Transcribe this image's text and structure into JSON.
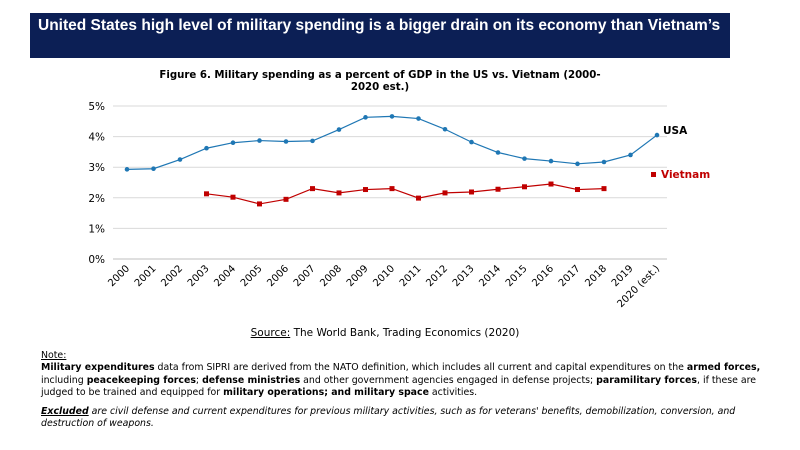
{
  "banner": {
    "title": "United States high level of military spending is a bigger drain on its economy than Vietnam’s"
  },
  "chart_data": {
    "type": "line",
    "title": "Figure 6. Military spending as a percent of GDP in the US vs. Vietnam (2000-2020 est.)",
    "categories": [
      "2000",
      "2001",
      "2002",
      "2003",
      "2004",
      "2005",
      "2006",
      "2007",
      "2008",
      "2009",
      "2010",
      "2011",
      "2012",
      "2013",
      "2014",
      "2015",
      "2016",
      "2017",
      "2018",
      "2019",
      "2020 (est.)"
    ],
    "ylim": [
      0,
      5
    ],
    "yticks": [
      "0%",
      "1%",
      "2%",
      "3%",
      "4%",
      "5%"
    ],
    "grid": true,
    "series": [
      {
        "name": "USA",
        "color": "#1f77b4",
        "marker": "circle",
        "values": [
          2.93,
          2.95,
          3.25,
          3.62,
          3.8,
          3.87,
          3.84,
          3.86,
          4.23,
          4.63,
          4.66,
          4.59,
          4.24,
          3.82,
          3.48,
          3.28,
          3.2,
          3.11,
          3.17,
          3.4,
          4.05
        ]
      },
      {
        "name": "Vietnam",
        "color": "#c00000",
        "marker": "square",
        "values": [
          null,
          null,
          null,
          2.13,
          2.02,
          1.8,
          1.95,
          2.3,
          2.16,
          2.27,
          2.3,
          1.99,
          2.16,
          2.19,
          2.28,
          2.36,
          2.45,
          2.27,
          2.3,
          null,
          null
        ]
      }
    ]
  },
  "source": {
    "label": "Source:",
    "text": " The World Bank, Trading Economics (2020)"
  },
  "notes": {
    "heading": "Note:",
    "para1": [
      {
        "t": "Military expenditures",
        "b": true
      },
      {
        "t": " data from SIPRI are derived from the NATO definition, which includes all current and capital expenditures on the ",
        "b": false
      },
      {
        "t": "armed forces,",
        "b": true
      },
      {
        "t": " including ",
        "b": false
      },
      {
        "t": "peacekeeping forces",
        "b": true
      },
      {
        "t": "; ",
        "b": false
      },
      {
        "t": "defense ministries",
        "b": true
      },
      {
        "t": " and other government agencies engaged in defense projects; ",
        "b": false
      },
      {
        "t": "paramilitary forces",
        "b": true
      },
      {
        "t": ", if these are judged to be trained and equipped for ",
        "b": false
      },
      {
        "t": "military operations; and military space",
        "b": true
      },
      {
        "t": " activities.",
        "b": false
      }
    ],
    "excluded_label": "Excluded",
    "excluded_text": " are civil defense and current expenditures for previous military activities, such as for veterans' benefits, demobilization, conversion, and destruction of weapons."
  }
}
